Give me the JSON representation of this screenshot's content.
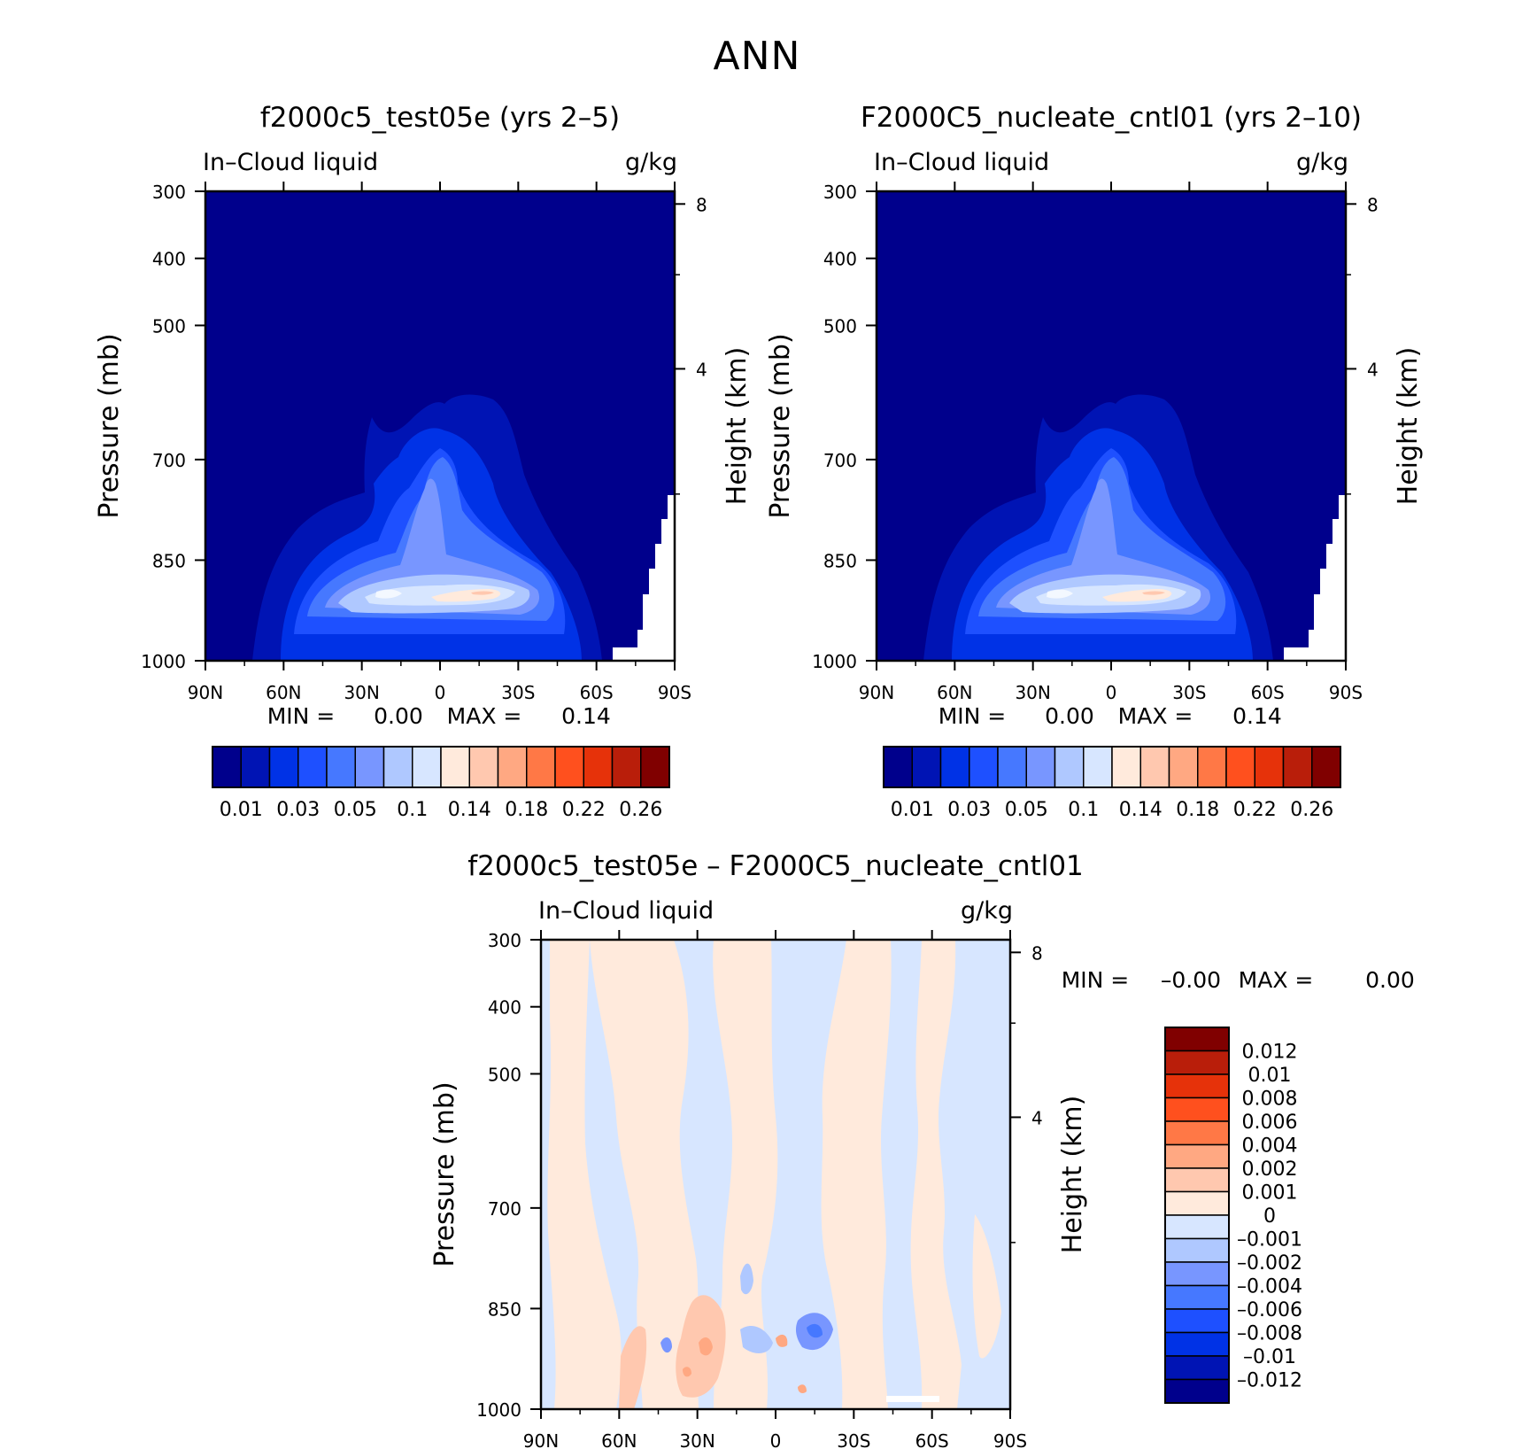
{
  "figure": {
    "title": "ANN"
  },
  "colors": {
    "plot_bg": "#00008c",
    "line": "#000000"
  },
  "chart_data": [
    {
      "id": "test",
      "type": "heatmap",
      "title": "f2000c5_test05e (yrs 2–5)",
      "variable": "In–Cloud liquid",
      "units": "g/kg",
      "ylabel": "Pressure (mb)",
      "ylabel_right": "Height (km)",
      "x_ticks": [
        "90N",
        "60N",
        "30N",
        "0",
        "30S",
        "60S",
        "90S"
      ],
      "y_ticks": [
        300,
        400,
        500,
        700,
        850,
        1000
      ],
      "y_right_ticks": [
        8,
        4
      ],
      "min_label": "MIN =",
      "min_value": "0.00",
      "max_label": "MAX =",
      "max_value": "0.14",
      "ylim": [
        1000,
        300
      ],
      "xlim": [
        90,
        -90
      ],
      "colorbar": {
        "colors": [
          "#00008c",
          "#0014b4",
          "#0032e6",
          "#1e50ff",
          "#4678ff",
          "#7896ff",
          "#afc8ff",
          "#d7e6ff",
          "#ffeadc",
          "#ffc8af",
          "#ffa882",
          "#ff7846",
          "#ff501e",
          "#e6320a",
          "#b91e0a",
          "#800000"
        ],
        "labels": [
          "0.01",
          "0.03",
          "0.05",
          "0.1",
          "0.14",
          "0.18",
          "0.22",
          "0.26"
        ]
      }
    },
    {
      "id": "cntl",
      "type": "heatmap",
      "title": "F2000C5_nucleate_cntl01 (yrs 2–10)",
      "variable": "In–Cloud liquid",
      "units": "g/kg",
      "ylabel": "Pressure (mb)",
      "ylabel_right": "Height (km)",
      "x_ticks": [
        "90N",
        "60N",
        "30N",
        "0",
        "30S",
        "60S",
        "90S"
      ],
      "y_ticks": [
        300,
        400,
        500,
        700,
        850,
        1000
      ],
      "y_right_ticks": [
        8,
        4
      ],
      "min_label": "MIN =",
      "min_value": "0.00",
      "max_label": "MAX =",
      "max_value": "0.14",
      "ylim": [
        1000,
        300
      ],
      "xlim": [
        90,
        -90
      ],
      "colorbar": {
        "colors": [
          "#00008c",
          "#0014b4",
          "#0032e6",
          "#1e50ff",
          "#4678ff",
          "#7896ff",
          "#afc8ff",
          "#d7e6ff",
          "#ffeadc",
          "#ffc8af",
          "#ffa882",
          "#ff7846",
          "#ff501e",
          "#e6320a",
          "#b91e0a",
          "#800000"
        ],
        "labels": [
          "0.01",
          "0.03",
          "0.05",
          "0.1",
          "0.14",
          "0.18",
          "0.22",
          "0.26"
        ]
      }
    },
    {
      "id": "diff",
      "type": "heatmap",
      "title": "f2000c5_test05e – F2000C5_nucleate_cntl01",
      "variable": "In–Cloud liquid",
      "units": "g/kg",
      "ylabel": "Pressure (mb)",
      "ylabel_right": "Height (km)",
      "x_ticks": [
        "90N",
        "60N",
        "30N",
        "0",
        "30S",
        "60S",
        "90S"
      ],
      "y_ticks": [
        300,
        400,
        500,
        700,
        850,
        1000
      ],
      "y_right_ticks": [
        8,
        4
      ],
      "min_label": "MIN =",
      "min_value": "–0.00",
      "max_label": "MAX =",
      "max_value": "0.00",
      "ylim": [
        1000,
        300
      ],
      "xlim": [
        90,
        -90
      ],
      "colorbar": {
        "colors": [
          "#800000",
          "#b91e0a",
          "#e6320a",
          "#ff501e",
          "#ff7846",
          "#ffa882",
          "#ffc8af",
          "#ffeadc",
          "#d7e6ff",
          "#afc8ff",
          "#7896ff",
          "#4678ff",
          "#1e50ff",
          "#0032e6",
          "#0014b4",
          "#00008c"
        ],
        "labels": [
          "0.012",
          "0.01",
          "0.008",
          "0.006",
          "0.004",
          "0.002",
          "0.001",
          "0",
          "–0.001",
          "–0.002",
          "–0.004",
          "–0.006",
          "–0.008",
          "–0.01",
          "–0.012"
        ]
      }
    }
  ]
}
